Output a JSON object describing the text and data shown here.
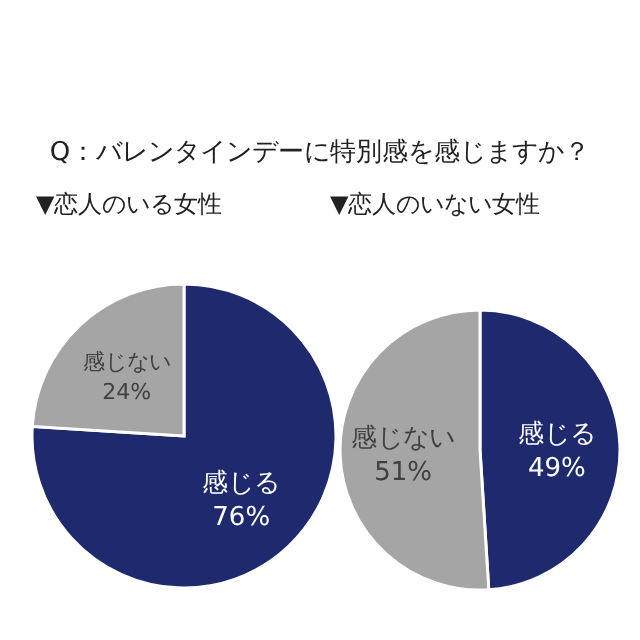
{
  "chart_data": [
    {
      "type": "pie",
      "title": "Q：バレンタインデーに特別感を感じますか？",
      "subtitle": "▼恋人のいる女性",
      "categories": [
        "感じる",
        "感じない"
      ],
      "values": [
        76,
        24
      ],
      "value_labels": [
        "76%",
        "24%"
      ],
      "colors": [
        "#1f2a6e",
        "#a5a5a5"
      ]
    },
    {
      "type": "pie",
      "subtitle": "▼恋人のいない女性",
      "categories": [
        "感じる",
        "感じない"
      ],
      "values": [
        49,
        51
      ],
      "value_labels": [
        "49%",
        "51%"
      ],
      "colors": [
        "#1f2a6e",
        "#a5a5a5"
      ]
    }
  ]
}
